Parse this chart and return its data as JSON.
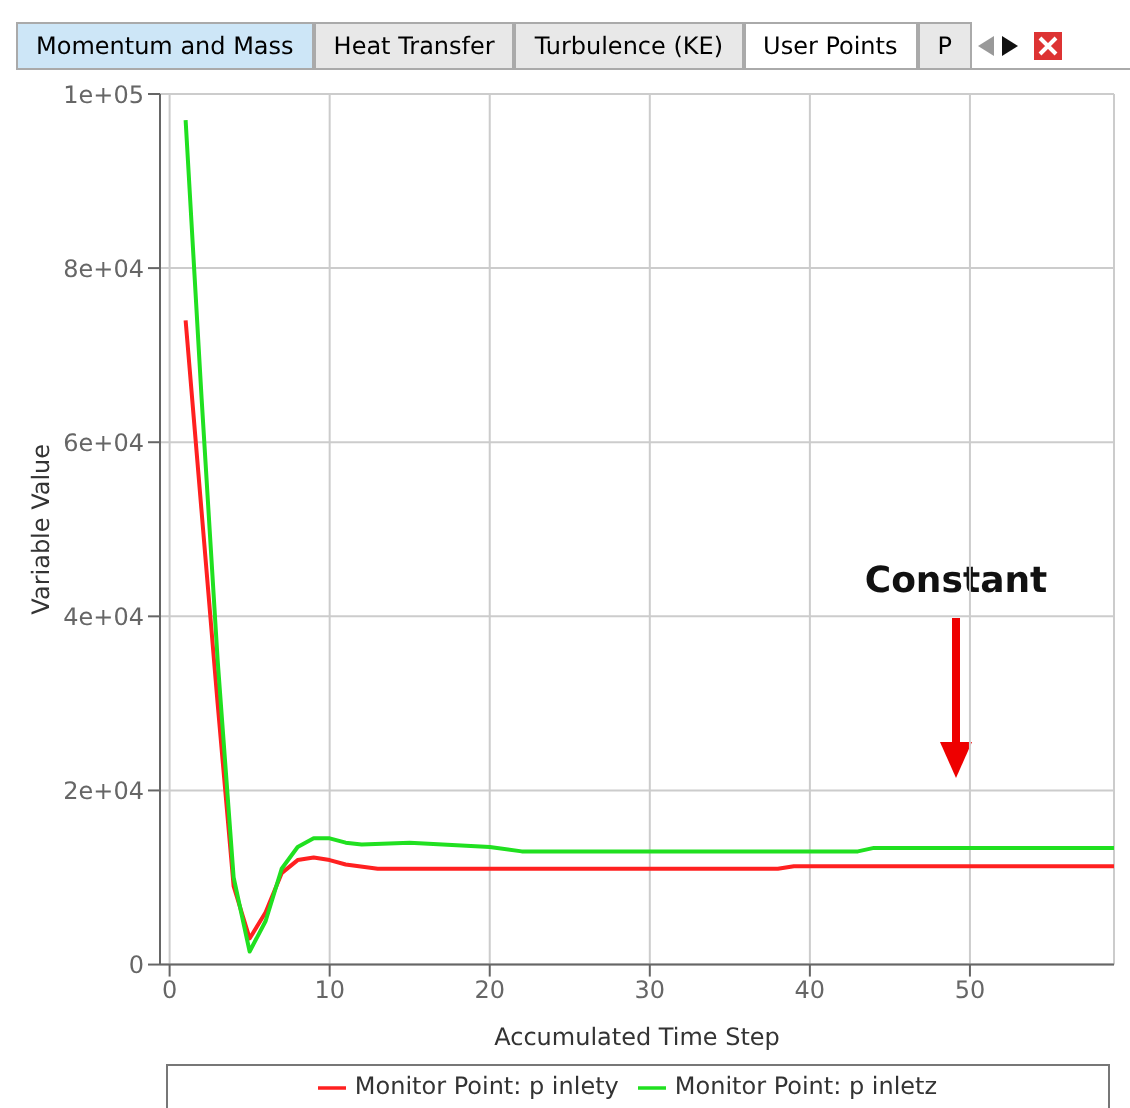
{
  "chart_data": {
    "type": "line",
    "xlabel": "Accumulated Time Step",
    "ylabel": "Variable Value",
    "annotations": [
      "Momentum and Mass",
      "Heat Transfer",
      "Turbulence (KE)",
      "User Points",
      "P",
      "Constant"
    ],
    "xlim": [
      -0.6,
      59
    ],
    "xticks": [
      0,
      10,
      20,
      30,
      40,
      50
    ],
    "ylim": [
      0,
      100000
    ],
    "yticks": [
      0,
      {
        "value": 20000,
        "label": "2e+04"
      },
      {
        "value": 40000,
        "label": "4e+04"
      },
      {
        "value": 60000,
        "label": "6e+04"
      },
      {
        "value": 80000,
        "label": "8e+04"
      },
      {
        "value": 100000,
        "label": "1e+05"
      }
    ],
    "grid": true,
    "legend": "bottom",
    "marker": "none",
    "line_style": "solid",
    "series": [
      {
        "name": "Monitor Point: p inlety",
        "color": "#ff2020",
        "x": [
          1,
          2,
          3,
          4,
          5,
          6,
          7,
          8,
          9,
          10,
          11,
          13,
          20,
          30,
          38,
          39,
          45,
          59
        ],
        "values": [
          74000,
          52000,
          30000,
          9000,
          3000,
          6000,
          10500,
          12000,
          12300,
          12000,
          11500,
          11000,
          11000,
          11000,
          11000,
          11300,
          11300,
          11300
        ]
      },
      {
        "name": "Monitor Point: p inletz",
        "color": "#20e020",
        "x": [
          1,
          2,
          3,
          4,
          5,
          6,
          7,
          8,
          9,
          10,
          11,
          12,
          15,
          20,
          22,
          30,
          43,
          44,
          59
        ],
        "values": [
          97000,
          65000,
          35000,
          10000,
          1500,
          5000,
          11000,
          13500,
          14500,
          14500,
          14000,
          13800,
          14000,
          13500,
          13000,
          13000,
          13000,
          13400,
          13400
        ]
      }
    ]
  }
}
